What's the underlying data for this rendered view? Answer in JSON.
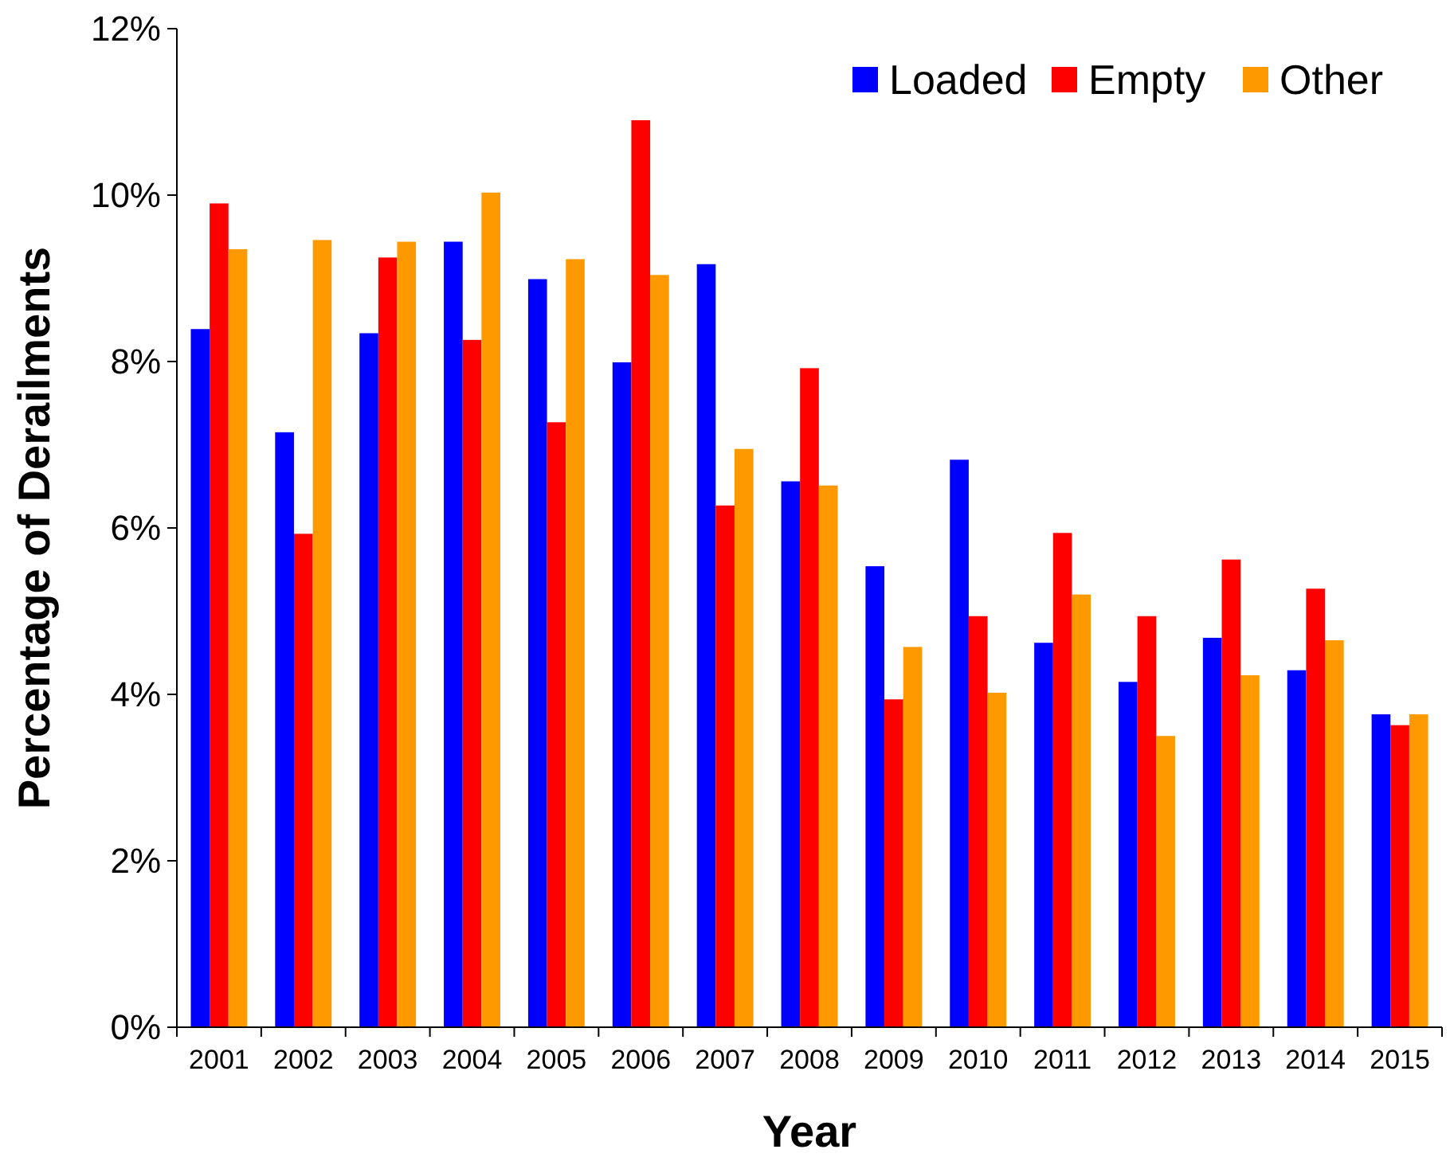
{
  "chart_data": {
    "type": "bar",
    "xlabel": "Year",
    "ylabel": "Percentage of Derailments",
    "categories": [
      "2001",
      "2002",
      "2003",
      "2004",
      "2005",
      "2006",
      "2007",
      "2008",
      "2009",
      "2010",
      "2011",
      "2012",
      "2013",
      "2014",
      "2015"
    ],
    "series": [
      {
        "name": "Loaded",
        "color": "#0000ff",
        "values": [
          8.39,
          7.15,
          8.34,
          9.44,
          8.99,
          7.99,
          9.17,
          6.56,
          5.54,
          6.82,
          4.62,
          4.15,
          4.68,
          4.29,
          3.76
        ]
      },
      {
        "name": "Empty",
        "color": "#ff0000",
        "values": [
          9.9,
          5.93,
          9.25,
          8.26,
          7.27,
          10.9,
          6.27,
          7.92,
          3.94,
          4.94,
          5.94,
          4.94,
          5.62,
          5.27,
          3.63
        ]
      },
      {
        "name": "Other",
        "color": "#ff9900",
        "values": [
          9.35,
          9.46,
          9.44,
          10.03,
          9.23,
          9.04,
          6.95,
          6.51,
          4.57,
          4.02,
          5.2,
          3.5,
          4.23,
          4.65,
          3.76
        ]
      }
    ],
    "ylim": [
      0,
      12
    ],
    "yticks": [
      {
        "value": 0,
        "label": "0%"
      },
      {
        "value": 2,
        "label": "2%"
      },
      {
        "value": 4,
        "label": "4%"
      },
      {
        "value": 6,
        "label": "6%"
      },
      {
        "value": 8,
        "label": "8%"
      },
      {
        "value": 10,
        "label": "10%"
      },
      {
        "value": 12,
        "label": "12%"
      }
    ],
    "grid": false,
    "legend": "top right"
  }
}
